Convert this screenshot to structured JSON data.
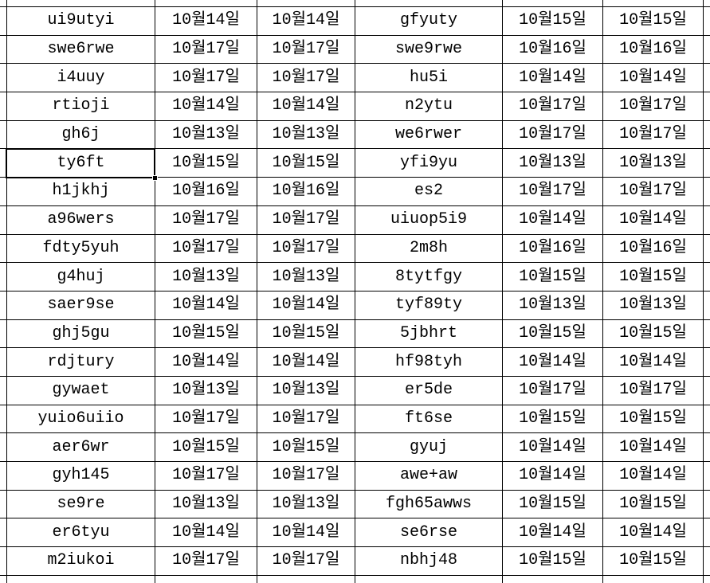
{
  "colors": {
    "background": "#ffffff",
    "grid_line": "#000000",
    "text": "#000000",
    "selection_border": "#000000"
  },
  "table": {
    "selected_cell": {
      "row_index": 6,
      "column": "left_name",
      "value": "ty6ft"
    },
    "column_keys": [
      "left_name",
      "left_date_1",
      "left_date_2",
      "right_name",
      "right_date_1",
      "right_date_2"
    ],
    "rows": [
      {
        "left_name": "ui9utyi",
        "left_date_1": "10월14일",
        "left_date_2": "10월14일",
        "right_name": "gfyuty",
        "right_date_1": "10월15일",
        "right_date_2": "10월15일"
      },
      {
        "left_name": "swe6rwe",
        "left_date_1": "10월17일",
        "left_date_2": "10월17일",
        "right_name": "swe9rwe",
        "right_date_1": "10월16일",
        "right_date_2": "10월16일"
      },
      {
        "left_name": "i4uuy",
        "left_date_1": "10월17일",
        "left_date_2": "10월17일",
        "right_name": "hu5i",
        "right_date_1": "10월14일",
        "right_date_2": "10월14일"
      },
      {
        "left_name": "rtioji",
        "left_date_1": "10월14일",
        "left_date_2": "10월14일",
        "right_name": "n2ytu",
        "right_date_1": "10월17일",
        "right_date_2": "10월17일"
      },
      {
        "left_name": "gh6j",
        "left_date_1": "10월13일",
        "left_date_2": "10월13일",
        "right_name": "we6rwer",
        "right_date_1": "10월17일",
        "right_date_2": "10월17일"
      },
      {
        "left_name": "ty6ft",
        "left_date_1": "10월15일",
        "left_date_2": "10월15일",
        "right_name": "yfi9yu",
        "right_date_1": "10월13일",
        "right_date_2": "10월13일"
      },
      {
        "left_name": "h1jkhj",
        "left_date_1": "10월16일",
        "left_date_2": "10월16일",
        "right_name": "es2",
        "right_date_1": "10월17일",
        "right_date_2": "10월17일"
      },
      {
        "left_name": "a96wers",
        "left_date_1": "10월17일",
        "left_date_2": "10월17일",
        "right_name": "uiuop5i9",
        "right_date_1": "10월14일",
        "right_date_2": "10월14일"
      },
      {
        "left_name": "fdty5yuh",
        "left_date_1": "10월17일",
        "left_date_2": "10월17일",
        "right_name": "2m8h",
        "right_date_1": "10월16일",
        "right_date_2": "10월16일"
      },
      {
        "left_name": "g4huj",
        "left_date_1": "10월13일",
        "left_date_2": "10월13일",
        "right_name": "8tytfgy",
        "right_date_1": "10월15일",
        "right_date_2": "10월15일"
      },
      {
        "left_name": "saer9se",
        "left_date_1": "10월14일",
        "left_date_2": "10월14일",
        "right_name": "tyf89ty",
        "right_date_1": "10월13일",
        "right_date_2": "10월13일"
      },
      {
        "left_name": "ghj5gu",
        "left_date_1": "10월15일",
        "left_date_2": "10월15일",
        "right_name": "5jbhrt",
        "right_date_1": "10월15일",
        "right_date_2": "10월15일"
      },
      {
        "left_name": "rdjtury",
        "left_date_1": "10월14일",
        "left_date_2": "10월14일",
        "right_name": "hf98tyh",
        "right_date_1": "10월14일",
        "right_date_2": "10월14일"
      },
      {
        "left_name": "gywaet",
        "left_date_1": "10월13일",
        "left_date_2": "10월13일",
        "right_name": "er5de",
        "right_date_1": "10월17일",
        "right_date_2": "10월17일"
      },
      {
        "left_name": "yuio6uiio",
        "left_date_1": "10월17일",
        "left_date_2": "10월17일",
        "right_name": "ft6se",
        "right_date_1": "10월15일",
        "right_date_2": "10월15일"
      },
      {
        "left_name": "aer6wr",
        "left_date_1": "10월15일",
        "left_date_2": "10월15일",
        "right_name": "gyuj",
        "right_date_1": "10월14일",
        "right_date_2": "10월14일"
      },
      {
        "left_name": "gyh145",
        "left_date_1": "10월17일",
        "left_date_2": "10월17일",
        "right_name": "awe+aw",
        "right_date_1": "10월14일",
        "right_date_2": "10월14일"
      },
      {
        "left_name": "se9re",
        "left_date_1": "10월13일",
        "left_date_2": "10월13일",
        "right_name": "fgh65awws",
        "right_date_1": "10월15일",
        "right_date_2": "10월15일"
      },
      {
        "left_name": "er6tyu",
        "left_date_1": "10월14일",
        "left_date_2": "10월14일",
        "right_name": "se6rse",
        "right_date_1": "10월14일",
        "right_date_2": "10월14일"
      },
      {
        "left_name": "m2iukoi",
        "left_date_1": "10월17일",
        "left_date_2": "10월17일",
        "right_name": "nbhj48",
        "right_date_1": "10월15일",
        "right_date_2": "10월15일"
      }
    ]
  }
}
